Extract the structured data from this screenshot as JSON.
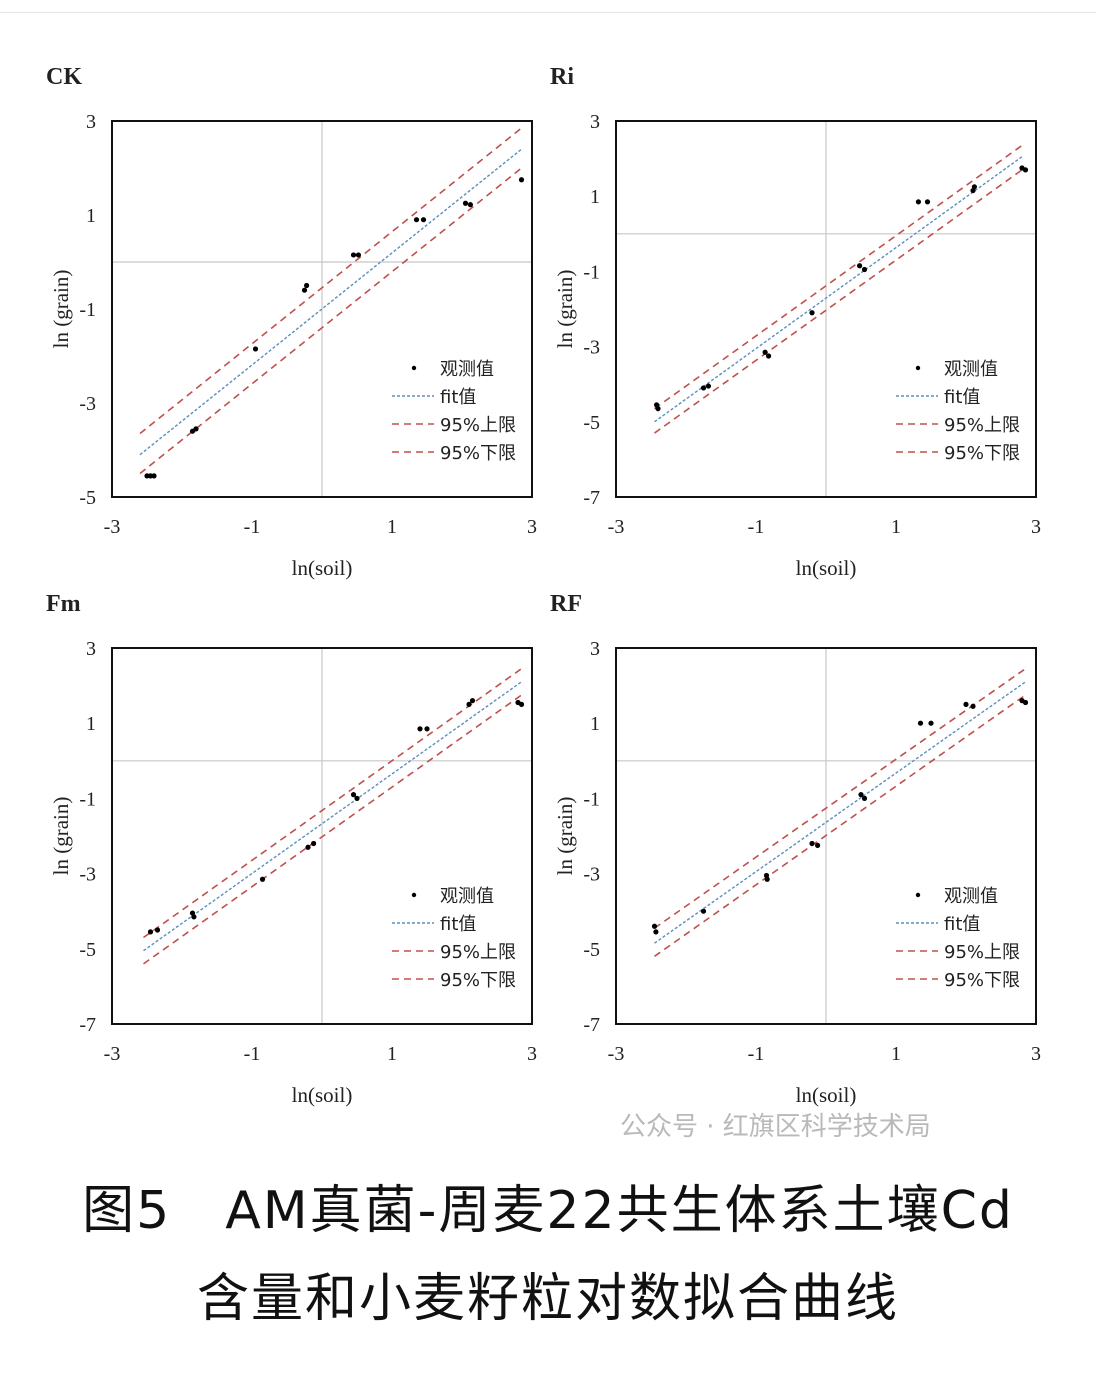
{
  "chart_data": [
    {
      "type": "scatter",
      "title": "CK",
      "xlabel": "ln(soil)",
      "ylabel": "ln (grain)",
      "xlim": [
        -3,
        3
      ],
      "ylim": [
        -5,
        3
      ],
      "xticks": [
        "-3",
        "-1",
        "1",
        "3"
      ],
      "yticks": [
        "3",
        "1",
        "-1",
        "-3",
        "-5"
      ],
      "grid": "zero-lines",
      "legend_position": "bottom-right",
      "points": [
        [
          -2.5,
          -4.55
        ],
        [
          -2.45,
          -4.55
        ],
        [
          -2.4,
          -4.55
        ],
        [
          -1.85,
          -3.6
        ],
        [
          -1.8,
          -3.55
        ],
        [
          -0.95,
          -1.85
        ],
        [
          -0.25,
          -0.6
        ],
        [
          -0.22,
          -0.5
        ],
        [
          0.45,
          0.15
        ],
        [
          0.52,
          0.15
        ],
        [
          1.35,
          0.9
        ],
        [
          1.45,
          0.9
        ],
        [
          2.05,
          1.25
        ],
        [
          2.12,
          1.22
        ],
        [
          2.85,
          1.75
        ]
      ],
      "fit": [
        [
          -2.6,
          -4.1
        ],
        [
          2.85,
          2.4
        ]
      ],
      "upper": [
        [
          -2.6,
          -3.65
        ],
        [
          2.85,
          2.85
        ]
      ],
      "lower": [
        [
          -2.6,
          -4.5
        ],
        [
          2.85,
          2.0
        ]
      ]
    },
    {
      "type": "scatter",
      "title": "Ri",
      "xlabel": "ln(soil)",
      "ylabel": "ln (grain)",
      "xlim": [
        -3,
        3
      ],
      "ylim": [
        -7,
        3
      ],
      "xticks": [
        "-3",
        "-1",
        "1",
        "3"
      ],
      "yticks": [
        "3",
        "1",
        "-1",
        "-3",
        "-5",
        "-7"
      ],
      "grid": "zero-lines",
      "legend_position": "bottom-right",
      "points": [
        [
          -2.42,
          -4.55
        ],
        [
          -2.4,
          -4.65
        ],
        [
          -1.75,
          -4.1
        ],
        [
          -1.68,
          -4.05
        ],
        [
          -0.87,
          -3.15
        ],
        [
          -0.82,
          -3.25
        ],
        [
          -0.2,
          -2.1
        ],
        [
          0.48,
          -0.85
        ],
        [
          0.55,
          -0.95
        ],
        [
          1.32,
          0.85
        ],
        [
          1.45,
          0.85
        ],
        [
          2.1,
          1.15
        ],
        [
          2.12,
          1.25
        ],
        [
          2.8,
          1.75
        ],
        [
          2.85,
          1.7
        ]
      ],
      "fit": [
        [
          -2.45,
          -5.0
        ],
        [
          2.8,
          2.05
        ]
      ],
      "upper": [
        [
          -2.45,
          -4.65
        ],
        [
          2.8,
          2.35
        ]
      ],
      "lower": [
        [
          -2.45,
          -5.3
        ],
        [
          2.8,
          1.7
        ]
      ]
    },
    {
      "type": "scatter",
      "title": "Fm",
      "xlabel": "ln(soil)",
      "ylabel": "ln (grain)",
      "xlim": [
        -3,
        3
      ],
      "ylim": [
        -7,
        3
      ],
      "xticks": [
        "-3",
        "-1",
        "1",
        "3"
      ],
      "yticks": [
        "3",
        "1",
        "-1",
        "-3",
        "-5",
        "-7"
      ],
      "grid": "zero-lines",
      "legend_position": "bottom-right",
      "points": [
        [
          -2.45,
          -4.55
        ],
        [
          -2.35,
          -4.5
        ],
        [
          -1.85,
          -4.05
        ],
        [
          -1.83,
          -4.15
        ],
        [
          -0.85,
          -3.15
        ],
        [
          -0.2,
          -2.3
        ],
        [
          -0.12,
          -2.2
        ],
        [
          0.45,
          -0.9
        ],
        [
          0.5,
          -1.0
        ],
        [
          1.4,
          0.85
        ],
        [
          1.5,
          0.85
        ],
        [
          2.1,
          1.5
        ],
        [
          2.15,
          1.6
        ],
        [
          2.8,
          1.55
        ],
        [
          2.85,
          1.5
        ]
      ],
      "fit": [
        [
          -2.55,
          -5.05
        ],
        [
          2.85,
          2.1
        ]
      ],
      "upper": [
        [
          -2.55,
          -4.7
        ],
        [
          2.85,
          2.45
        ]
      ],
      "lower": [
        [
          -2.55,
          -5.4
        ],
        [
          2.85,
          1.75
        ]
      ]
    },
    {
      "type": "scatter",
      "title": "RF",
      "xlabel": "ln(soil)",
      "ylabel": "ln (grain)",
      "xlim": [
        -3,
        3
      ],
      "ylim": [
        -7,
        3
      ],
      "xticks": [
        "-3",
        "-1",
        "1",
        "3"
      ],
      "yticks": [
        "3",
        "1",
        "-1",
        "-3",
        "-5",
        "-7"
      ],
      "grid": "zero-lines",
      "legend_position": "bottom-right",
      "points": [
        [
          -2.45,
          -4.4
        ],
        [
          -2.43,
          -4.55
        ],
        [
          -1.75,
          -4.0
        ],
        [
          -0.85,
          -3.05
        ],
        [
          -0.84,
          -3.15
        ],
        [
          -0.2,
          -2.2
        ],
        [
          -0.12,
          -2.25
        ],
        [
          0.5,
          -0.9
        ],
        [
          0.55,
          -1.0
        ],
        [
          1.35,
          1.0
        ],
        [
          1.5,
          1.0
        ],
        [
          2.0,
          1.5
        ],
        [
          2.1,
          1.45
        ],
        [
          2.8,
          1.6
        ],
        [
          2.85,
          1.55
        ]
      ],
      "fit": [
        [
          -2.45,
          -4.85
        ],
        [
          2.85,
          2.1
        ]
      ],
      "upper": [
        [
          -2.45,
          -4.45
        ],
        [
          2.85,
          2.45
        ]
      ],
      "lower": [
        [
          -2.45,
          -5.2
        ],
        [
          2.85,
          1.75
        ]
      ]
    }
  ],
  "legend": {
    "observed": "观测值",
    "fit": "fit值",
    "upper": "95%上限",
    "lower": "95%下限"
  },
  "colors": {
    "fit": "#5b8fbf",
    "bounds": "#c0504d",
    "points": "#000000",
    "grid": "#c8c8c8"
  },
  "watermark": "公众号 · 红旗区科学技术局",
  "caption": {
    "line1": "图5　AM真菌-周麦22共生体系土壤Cd",
    "line2": "含量和小麦籽粒对数拟合曲线"
  }
}
